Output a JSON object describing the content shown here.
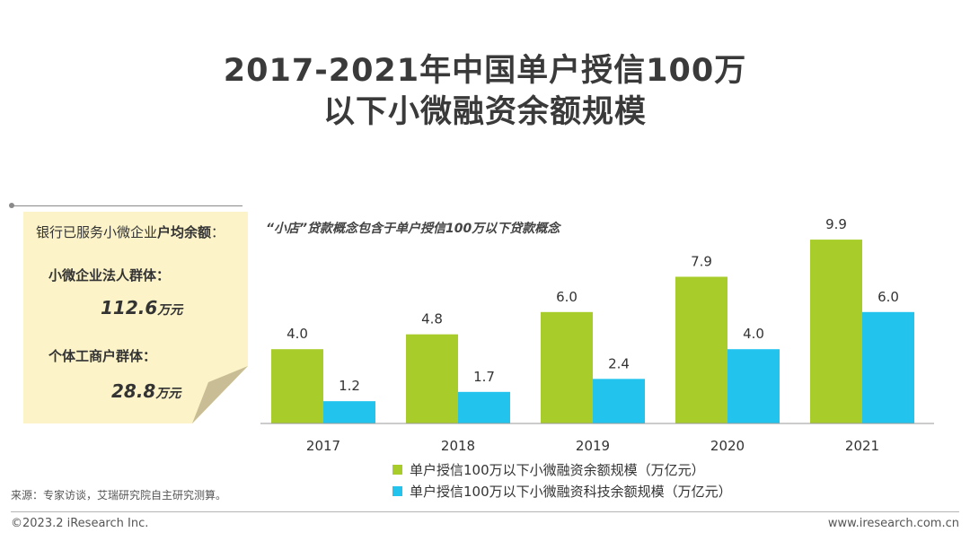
{
  "title_line1": "2017-2021年中国单户授信100万",
  "title_line2": "以下小微融资余额规模",
  "note": {
    "intro_prefix": "银行已服务小微企业",
    "intro_bold": "户均余额",
    "intro_suffix": "：",
    "group1_label": "小微企业法人群体：",
    "group1_value": "112.6",
    "group1_unit": "万元",
    "group2_label": "个体工商户群体：",
    "group2_value": "28.8",
    "group2_unit": "万元"
  },
  "chart_note": "“小店”贷款概念包含于单户授信100万以下贷款概念",
  "colors": {
    "green": "#a8cc2a",
    "blue": "#22c4ee",
    "note_bg": "#fcf3c8"
  },
  "chart_data": {
    "type": "bar",
    "title": "2017-2021年中国单户授信100万以下小微融资余额规模",
    "categories": [
      "2017",
      "2018",
      "2019",
      "2020",
      "2021"
    ],
    "series": [
      {
        "name": "单户授信100万以下小微融资余额规模（万亿元）",
        "values": [
          4.0,
          4.8,
          6.0,
          7.9,
          9.9
        ],
        "color": "#a8cc2a"
      },
      {
        "name": "单户授信100万以下小微融资科技余额规模（万亿元）",
        "values": [
          1.2,
          1.7,
          2.4,
          4.0,
          6.0
        ],
        "color": "#22c4ee"
      }
    ],
    "ylim": [
      0,
      10
    ],
    "xlabel": "",
    "ylabel": "",
    "grid": false,
    "legend": "bottom"
  },
  "source": "来源：专家访谈，艾瑞研究院自主研究测算。",
  "copyright": "©2023.2 iResearch Inc.",
  "website": "www.iresearch.com.cn"
}
